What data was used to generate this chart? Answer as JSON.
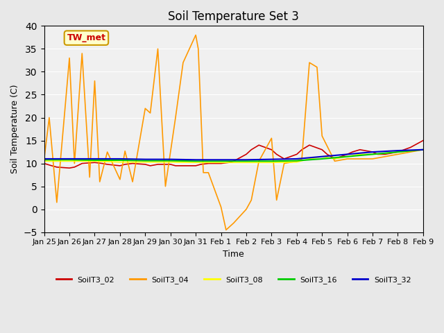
{
  "title": "Soil Temperature Set 3",
  "xlabel": "Time",
  "ylabel": "Soil Temperature (C)",
  "ylim": [
    -5,
    40
  ],
  "xlim": [
    0,
    15
  ],
  "xtick_labels": [
    "Jan 25",
    "Jan 26",
    "Jan 27",
    "Jan 28",
    "Jan 29",
    "Jan 30",
    "Jan 31",
    "Feb 1",
    "Feb 2",
    "Feb 3",
    "Feb 4",
    "Feb 5",
    "Feb 6",
    "Feb 7",
    "Feb 8",
    "Feb 9"
  ],
  "annotation_text": "TW_met",
  "annotation_color": "#cc0000",
  "annotation_bg": "#ffffcc",
  "annotation_border": "#cc9900",
  "bg_color": "#e8e8e8",
  "plot_bg": "#f0f0f0",
  "series": {
    "SoilT3_02": {
      "color": "#cc0000",
      "linewidth": 1.2,
      "x": [
        0,
        0.3,
        0.5,
        1,
        1.2,
        1.5,
        2,
        2.3,
        2.5,
        3,
        3.2,
        3.5,
        4,
        4.2,
        4.5,
        5,
        5.2,
        5.5,
        6,
        6.2,
        6.5,
        6.8,
        7,
        7.3,
        7.5,
        8,
        8.2,
        8.5,
        9,
        9.2,
        9.5,
        10,
        10.2,
        10.5,
        11,
        11.2,
        11.5,
        12,
        12.2,
        12.5,
        13,
        13.2,
        13.5,
        14,
        14.5,
        15
      ],
      "y": [
        10,
        9.5,
        9.2,
        9.0,
        9.2,
        10,
        10.2,
        10,
        9.8,
        9.5,
        9.8,
        10,
        9.8,
        9.5,
        9.8,
        9.8,
        9.5,
        9.5,
        9.5,
        9.8,
        10,
        10,
        10,
        10.2,
        10.5,
        12,
        13,
        14,
        13,
        12,
        11,
        12,
        13,
        14,
        13,
        12,
        11,
        12,
        12.5,
        13,
        12.5,
        12,
        12,
        12.5,
        13.5,
        15
      ]
    },
    "SoilT3_04": {
      "color": "#ff9900",
      "linewidth": 1.2,
      "x": [
        0,
        0.2,
        0.5,
        1,
        1.2,
        1.5,
        1.8,
        2,
        2.2,
        2.5,
        3,
        3.2,
        3.5,
        4,
        4.2,
        4.5,
        4.8,
        5,
        5.2,
        5.5,
        6,
        6.1,
        6.3,
        6.5,
        7,
        7.2,
        7.5,
        8,
        8.2,
        8.5,
        9,
        9.2,
        9.5,
        10,
        10.2,
        10.5,
        10.8,
        11,
        11.5,
        12,
        12.5,
        13,
        13.5,
        14,
        14.5,
        15
      ],
      "y": [
        11,
        20,
        1.5,
        33,
        10,
        34,
        7,
        28,
        6,
        12.5,
        6.5,
        12.7,
        6,
        22,
        21,
        35,
        5,
        12.5,
        20,
        32,
        38,
        35,
        8,
        8,
        0.5,
        -4.5,
        -3,
        0,
        2,
        10.5,
        15.5,
        2,
        10,
        10.5,
        11,
        32,
        31,
        16,
        10.5,
        11,
        11,
        11,
        11.5,
        12,
        12.5,
        13
      ]
    },
    "SoilT3_08": {
      "color": "#ffff00",
      "linewidth": 1.2,
      "x": [
        0,
        1,
        2,
        3,
        4,
        5,
        6,
        7,
        8,
        9,
        10,
        10.5,
        11,
        11.5,
        12,
        12.5,
        13,
        13.5,
        14,
        14.5,
        15
      ],
      "y": [
        10.5,
        10.5,
        10.5,
        10.3,
        10.3,
        10.3,
        10.2,
        10.2,
        10.2,
        10.2,
        10.3,
        11,
        11.5,
        11,
        11.5,
        12,
        12,
        12.2,
        12.5,
        12.7,
        13
      ]
    },
    "SoilT3_16": {
      "color": "#00cc00",
      "linewidth": 1.5,
      "x": [
        0,
        1,
        2,
        3,
        4,
        5,
        6,
        7,
        8,
        9,
        10,
        11,
        12,
        13,
        14,
        15
      ],
      "y": [
        10.8,
        10.8,
        10.7,
        10.7,
        10.6,
        10.6,
        10.5,
        10.5,
        10.5,
        10.5,
        10.6,
        11,
        11.5,
        12,
        12.5,
        13
      ]
    },
    "SoilT3_32": {
      "color": "#0000cc",
      "linewidth": 1.5,
      "x": [
        0,
        1,
        2,
        3,
        4,
        5,
        6,
        7,
        8,
        9,
        10,
        11,
        12,
        13,
        14,
        15
      ],
      "y": [
        11,
        11,
        11,
        11,
        10.9,
        10.9,
        10.8,
        10.8,
        10.8,
        10.9,
        11,
        11.5,
        12,
        12.5,
        12.8,
        13
      ]
    }
  }
}
